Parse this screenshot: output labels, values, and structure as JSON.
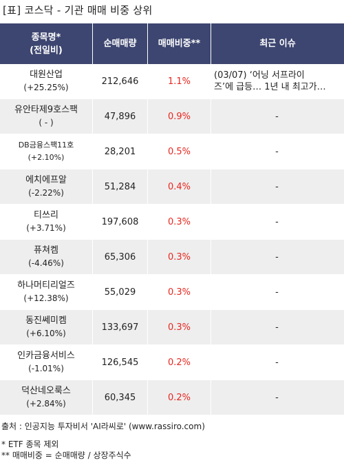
{
  "title": "[표] 코스닥 - 기관 매매 비중 상위",
  "headers": {
    "name_line1": "종목명*",
    "name_line2": "(전일비)",
    "volume": "순매매량",
    "ratio": "매매비중**",
    "issue": "최근 이슈"
  },
  "rows": [
    {
      "name": "대원산업",
      "change": "(+25.25%)",
      "volume": "212,646",
      "ratio": "1.1%",
      "issue_line1": "(03/07) ‘어닝 서프라이",
      "issue_line2": "즈’에 급등… 1년 내 최고가…"
    },
    {
      "name": "유안타제9호스팩",
      "change": "( - )",
      "volume": "47,896",
      "ratio": "0.9%",
      "issue": "-"
    },
    {
      "name": "DB금융스팩11호",
      "change": "(+2.10%)",
      "volume": "28,201",
      "ratio": "0.5%",
      "issue": "-"
    },
    {
      "name": "에치에프알",
      "change": "(-2.22%)",
      "volume": "51,284",
      "ratio": "0.4%",
      "issue": "-"
    },
    {
      "name": "티쓰리",
      "change": "(+3.71%)",
      "volume": "197,608",
      "ratio": "0.3%",
      "issue": "-"
    },
    {
      "name": "퓨쳐켐",
      "change": "(-4.46%)",
      "volume": "65,306",
      "ratio": "0.3%",
      "issue": "-"
    },
    {
      "name": "하나머티리얼즈",
      "change": "(+12.38%)",
      "volume": "55,029",
      "ratio": "0.3%",
      "issue": "-"
    },
    {
      "name": "동진쎄미켐",
      "change": "(+6.10%)",
      "volume": "133,697",
      "ratio": "0.3%",
      "issue": "-"
    },
    {
      "name": "인카금융서비스",
      "change": "(-1.01%)",
      "volume": "126,545",
      "ratio": "0.2%",
      "issue": "-"
    },
    {
      "name": "덕산네오룩스",
      "change": "(+2.84%)",
      "volume": "60,345",
      "ratio": "0.2%",
      "issue": "-"
    }
  ],
  "footer": {
    "source": "출처 : 인공지능 투자비서 'AI라씨로' (www.rassiro.com)",
    "note1": "* ETF 종목 제외",
    "note2": "** 매매비중 = 순매매량 / 상장주식수"
  },
  "colors": {
    "header_bg": "#3d4670",
    "ratio_text": "#e8261e",
    "row_alt_bg": "#eeeeee"
  }
}
